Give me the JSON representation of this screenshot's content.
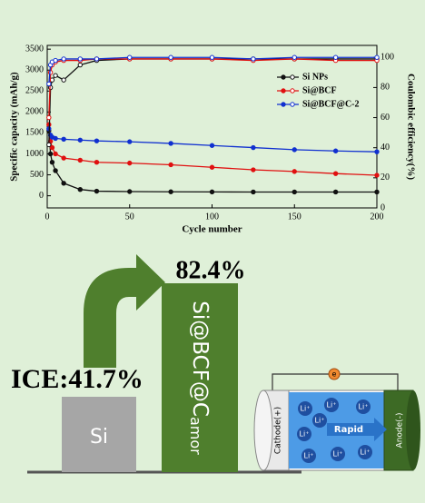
{
  "chart_data": {
    "type": "line",
    "x": [
      1,
      2,
      3,
      5,
      10,
      20,
      30,
      50,
      75,
      100,
      125,
      150,
      175,
      200
    ],
    "x_label": "Cycle number",
    "y_label": "Specific capacity (mAh/g)",
    "y2_label": "Coulombic efficiency(%)",
    "xlim": [
      0,
      200
    ],
    "xticks": [
      0,
      50,
      100,
      150,
      200
    ],
    "ylim": [
      -290,
      3590
    ],
    "yticks": [
      0,
      500,
      1000,
      1500,
      2000,
      2500,
      3000,
      3500
    ],
    "y2lim": [
      0,
      108
    ],
    "y2ticks": [
      0,
      20,
      40,
      60,
      80,
      100
    ],
    "legend": "upper right",
    "series": [
      {
        "name": "Si NPs",
        "color": "#111111",
        "marker": "filled",
        "values": [
          1550,
          1000,
          800,
          600,
          300,
          150,
          110,
          100,
          95,
          92,
          90,
          90,
          90,
          90
        ]
      },
      {
        "name": "Si@BCF",
        "color": "#e01010",
        "marker": "filled",
        "values": [
          1700,
          1300,
          1150,
          1000,
          900,
          850,
          800,
          780,
          740,
          680,
          620,
          580,
          530,
          490
        ]
      },
      {
        "name": "Si@BCF@C-2",
        "color": "#1030d0",
        "marker": "filled",
        "values": [
          1600,
          1450,
          1400,
          1370,
          1350,
          1330,
          1310,
          1290,
          1250,
          1200,
          1150,
          1100,
          1070,
          1050
        ]
      },
      {
        "color": "#111111",
        "marker": "hollow",
        "axis": "y2",
        "values": [
          42,
          80,
          85,
          88,
          85,
          95,
          98,
          99,
          99,
          99,
          99,
          99,
          99,
          99
        ]
      },
      {
        "color": "#e01010",
        "marker": "hollow",
        "axis": "y2",
        "values": [
          60,
          90,
          95,
          97,
          98,
          98,
          99,
          99,
          99,
          99,
          98,
          99,
          98,
          98
        ]
      },
      {
        "color": "#1030d0",
        "marker": "hollow",
        "axis": "y2",
        "values": [
          82.4,
          95,
          97,
          98,
          99,
          99,
          99,
          100,
          100,
          100,
          99,
          100,
          100,
          100
        ]
      }
    ]
  },
  "ice_diagram": {
    "ice_label": "ICE:41.7%",
    "improved_label": "82.4%",
    "bar_labels": [
      "Si",
      "Si@BCF@C"
    ],
    "subscript": "amor"
  },
  "battery": {
    "cathode": "Cathode(+)",
    "anode": "Anode(-)",
    "electron": "e",
    "direction": "Rapid",
    "ions": [
      "Li⁺",
      "Li⁺",
      "Li⁺",
      "Li⁺",
      "Li⁺",
      "Li⁺",
      "Li⁺",
      "Li⁺"
    ]
  }
}
